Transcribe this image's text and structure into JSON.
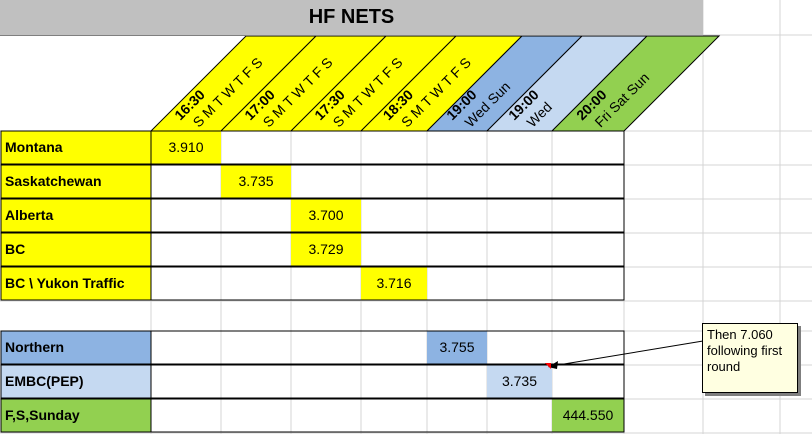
{
  "title": "HF NETS",
  "colors": {
    "yellow": "#ffff00",
    "blue_dark": "#8db3e2",
    "blue_light": "#c5d9f1",
    "green": "#92d050",
    "header_grey": "#c0c0c0",
    "grid": "#d4d4d4",
    "border": "#000000"
  },
  "time_columns": [
    {
      "time": "16:30",
      "days": "S M T W T F S"
    },
    {
      "time": "17:00",
      "days": "S M T W T F S"
    },
    {
      "time": "17:30",
      "days": "S M T W T F S"
    },
    {
      "time": "18:30",
      "days": "S M T W T F S"
    },
    {
      "time": "19:00",
      "days": "Wed Sun"
    },
    {
      "time": "19:00",
      "days": "Wed"
    },
    {
      "time": "20:00",
      "days": "Fri Sat Sun"
    }
  ],
  "nets": [
    {
      "name": "Montana",
      "frequency": "3.910"
    },
    {
      "name": "Saskatchewan",
      "frequency": "3.735"
    },
    {
      "name": "Alberta",
      "frequency": "3.700"
    },
    {
      "name": "BC",
      "frequency": "3.729"
    },
    {
      "name": "BC \\ Yukon Traffic",
      "frequency": "3.716"
    },
    {
      "name": "Northern",
      "frequency": "3.755"
    },
    {
      "name": "EMBC(PEP)",
      "frequency": "3.735"
    },
    {
      "name": "F,S,Sunday",
      "frequency": "444.550"
    }
  ],
  "comment": "Then 7.060 following first round"
}
